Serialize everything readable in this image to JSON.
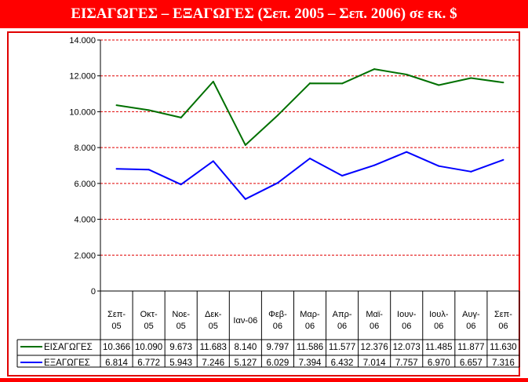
{
  "header": {
    "title": "ΕΙΣΑΓΩΓΕΣ – ΕΞΑΓΩΓΕΣ (Σεπ. 2005 – Σεπ. 2006) σε εκ. $"
  },
  "colors": {
    "header_bg": "#ff0000",
    "frame": "#e00000",
    "grid": "#e00000",
    "imports": "#007000",
    "exports": "#0000ff"
  },
  "chart_data": {
    "type": "line",
    "title": "ΕΙΣΑΓΩΓΕΣ – ΕΞΑΓΩΓΕΣ (Σεπ. 2005 – Σεπ. 2006) σε εκ. $",
    "categories": [
      [
        "Σεπ-",
        "05"
      ],
      [
        "Οκτ-",
        "05"
      ],
      [
        "Νοε-",
        "05"
      ],
      [
        "Δεκ-",
        "05"
      ],
      [
        "Ιαν-06"
      ],
      [
        "Φεβ-",
        "06"
      ],
      [
        "Μαρ-",
        "06"
      ],
      [
        "Απρ-",
        "06"
      ],
      [
        "Μαϊ-",
        "06"
      ],
      [
        "Ιουν-",
        "06"
      ],
      [
        "Ιουλ-",
        "06"
      ],
      [
        "Αυγ-",
        "06"
      ],
      [
        "Σεπ-",
        "06"
      ]
    ],
    "series": [
      {
        "name": "ΕΙΣΑΓΩΓΕΣ",
        "color": "#007000",
        "values": [
          10366,
          10090,
          9673,
          11683,
          8140,
          9797,
          11586,
          11577,
          12376,
          12073,
          11485,
          11877,
          11630
        ],
        "labels": [
          "10.366",
          "10.090",
          "9.673",
          "11.683",
          "8.140",
          "9.797",
          "11.586",
          "11.577",
          "12.376",
          "12.073",
          "11.485",
          "11.877",
          "11.630"
        ]
      },
      {
        "name": "ΕΞΑΓΩΓΕΣ",
        "color": "#0000ff",
        "values": [
          6814,
          6772,
          5943,
          7246,
          5127,
          6029,
          7394,
          6432,
          7014,
          7757,
          6970,
          6657,
          7316
        ],
        "labels": [
          "6.814",
          "6.772",
          "5.943",
          "7.246",
          "5.127",
          "6.029",
          "7.394",
          "6.432",
          "7.014",
          "7.757",
          "6.970",
          "6.657",
          "7.316"
        ]
      }
    ],
    "ylim": [
      0,
      14000
    ],
    "y_ticks": [
      0,
      2000,
      4000,
      6000,
      8000,
      10000,
      12000,
      14000
    ],
    "y_tick_labels": [
      "0",
      "2.000",
      "4.000",
      "6.000",
      "8.000",
      "10.000",
      "12.000",
      "14.000"
    ],
    "grid": true,
    "legend": "data-table"
  }
}
